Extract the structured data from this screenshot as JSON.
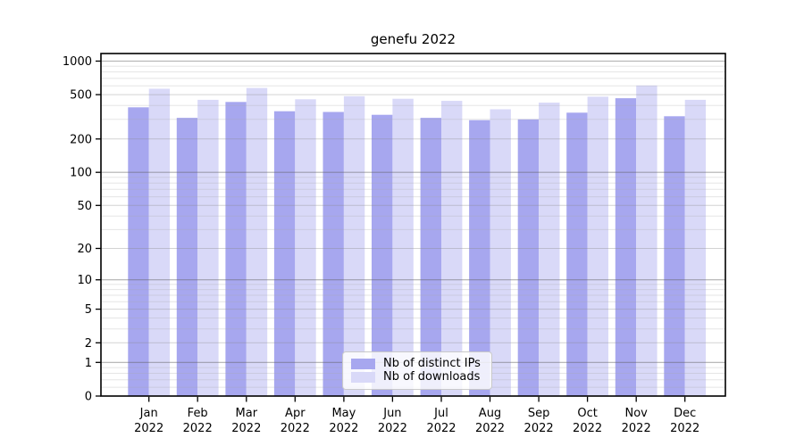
{
  "title": "genefu 2022",
  "chart_data": {
    "type": "bar",
    "title": "genefu 2022",
    "categories": [
      "Jan",
      "Feb",
      "Mar",
      "Apr",
      "May",
      "Jun",
      "Jul",
      "Aug",
      "Sep",
      "Oct",
      "Nov",
      "Dec"
    ],
    "year_label": "2022",
    "series": [
      {
        "key": "distinct-ips",
        "name": "Nb of distinct IPs",
        "color": "#a7a7ef",
        "values": [
          385,
          310,
          430,
          355,
          350,
          330,
          310,
          295,
          300,
          345,
          465,
          320
        ]
      },
      {
        "key": "downloads",
        "name": "Nb of downloads",
        "color": "#d9d9f8",
        "values": [
          565,
          450,
          575,
          455,
          485,
          460,
          440,
          370,
          425,
          480,
          605,
          450
        ]
      }
    ],
    "yscale": "log10(value+1)",
    "yticks": [
      0,
      1,
      2,
      5,
      10,
      20,
      50,
      100,
      200,
      500,
      1000
    ],
    "ytick_labels": [
      "0",
      "1",
      "2",
      "5",
      "10",
      "20",
      "50",
      "100",
      "200",
      "500",
      "1000"
    ],
    "ylim": [
      0,
      1170
    ],
    "xlabel": "",
    "ylabel": "",
    "grid": true,
    "legend_position": "bottom-center"
  }
}
